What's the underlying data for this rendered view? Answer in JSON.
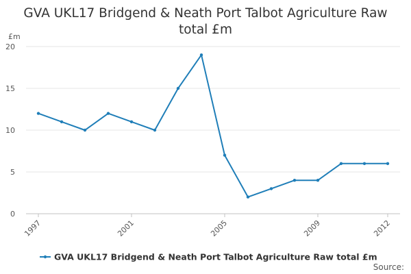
{
  "chart_data": {
    "type": "line",
    "title_line1": "GVA UKL17 Bridgend & Neath Port Talbot Agriculture Raw",
    "title_line2": "total £m",
    "ylabel": "£m",
    "ylim": [
      0,
      20
    ],
    "yticks": [
      "0",
      "5",
      "10",
      "15",
      "20"
    ],
    "x": [
      1997,
      1998,
      1999,
      2000,
      2001,
      2002,
      2003,
      2004,
      2005,
      2006,
      2007,
      2008,
      2009,
      2010,
      2011,
      2012
    ],
    "xticks": [
      "1997",
      "2001",
      "2005",
      "2009",
      "2012"
    ],
    "series": [
      {
        "name": "GVA UKL17 Bridgend & Neath Port Talbot Agriculture Raw total £m",
        "color": "#1f7eb8",
        "values": [
          12,
          11,
          10,
          12,
          11,
          10,
          15,
          19,
          7,
          2,
          3,
          4,
          4,
          6,
          6,
          6
        ]
      }
    ],
    "grid": true,
    "legend": "bottom"
  },
  "footer": {
    "source_label": "Source:"
  }
}
